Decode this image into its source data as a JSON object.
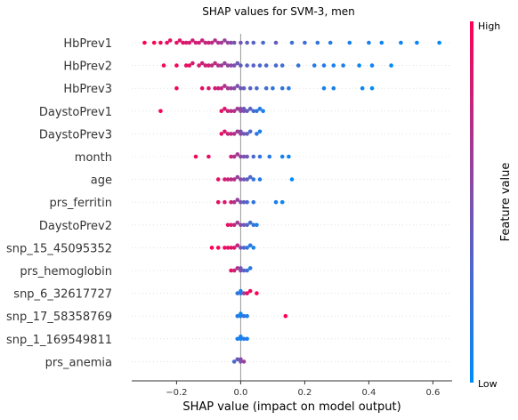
{
  "chart_data": {
    "type": "scatter",
    "subtype": "shap-beeswarm",
    "title": "SHAP values for SVM-3, men",
    "xlabel": "SHAP value (impact on model output)",
    "ylabel": "",
    "xlim": [
      -0.34,
      0.66
    ],
    "xticks": [
      {
        "value": -0.2,
        "label": "−0.2"
      },
      {
        "value": 0.0,
        "label": "0.0"
      },
      {
        "value": 0.2,
        "label": "0.2"
      },
      {
        "value": 0.4,
        "label": "0.4"
      },
      {
        "value": 0.6,
        "label": "0.6"
      }
    ],
    "grid": false,
    "colorbar": {
      "title": "Feature value",
      "high_label": "High",
      "low_label": "Low",
      "high_color": "#ff0052",
      "low_color": "#008bfb",
      "mid_color": "#7b52ae"
    },
    "features": [
      {
        "name": "HbPrev1",
        "points": [
          [
            -0.3,
            1
          ],
          [
            -0.27,
            1
          ],
          [
            -0.25,
            0.95
          ],
          [
            -0.23,
            0.9
          ],
          [
            -0.22,
            0.9
          ],
          [
            -0.2,
            0.9
          ],
          [
            -0.19,
            0.85
          ],
          [
            -0.18,
            0.9
          ],
          [
            -0.17,
            0.85
          ],
          [
            -0.16,
            0.85
          ],
          [
            -0.15,
            0.8
          ],
          [
            -0.14,
            0.85
          ],
          [
            -0.13,
            0.8
          ],
          [
            -0.12,
            0.8
          ],
          [
            -0.11,
            0.75
          ],
          [
            -0.1,
            0.8
          ],
          [
            -0.09,
            0.75
          ],
          [
            -0.08,
            0.7
          ],
          [
            -0.07,
            0.7
          ],
          [
            -0.06,
            0.65
          ],
          [
            -0.05,
            0.6
          ],
          [
            -0.04,
            0.6
          ],
          [
            -0.03,
            0.55
          ],
          [
            -0.02,
            0.5
          ],
          [
            0.0,
            0.45
          ],
          [
            0.02,
            0.4
          ],
          [
            0.04,
            0.35
          ],
          [
            0.07,
            0.3
          ],
          [
            0.11,
            0.4
          ],
          [
            0.16,
            0.25
          ],
          [
            0.2,
            0.25
          ],
          [
            0.24,
            0.2
          ],
          [
            0.28,
            0.15
          ],
          [
            0.34,
            0.1
          ],
          [
            0.4,
            0.1
          ],
          [
            0.44,
            0.05
          ],
          [
            0.5,
            0.05
          ],
          [
            0.55,
            0.05
          ],
          [
            0.62,
            0
          ]
        ]
      },
      {
        "name": "HbPrev2",
        "points": [
          [
            -0.24,
            0.95
          ],
          [
            -0.2,
            0.95
          ],
          [
            -0.17,
            0.9
          ],
          [
            -0.16,
            0.9
          ],
          [
            -0.15,
            0.85
          ],
          [
            -0.13,
            0.85
          ],
          [
            -0.12,
            0.8
          ],
          [
            -0.11,
            0.8
          ],
          [
            -0.1,
            0.85
          ],
          [
            -0.09,
            0.75
          ],
          [
            -0.08,
            0.75
          ],
          [
            -0.07,
            0.7
          ],
          [
            -0.06,
            0.65
          ],
          [
            -0.05,
            0.6
          ],
          [
            -0.04,
            0.6
          ],
          [
            -0.03,
            0.55
          ],
          [
            -0.02,
            0.5
          ],
          [
            -0.01,
            0.45
          ],
          [
            0.0,
            0.4
          ],
          [
            0.02,
            0.35
          ],
          [
            0.04,
            0.35
          ],
          [
            0.06,
            0.3
          ],
          [
            0.08,
            0.3
          ],
          [
            0.11,
            0.3
          ],
          [
            0.13,
            0.25
          ],
          [
            0.18,
            0.2
          ],
          [
            0.23,
            0.15
          ],
          [
            0.26,
            0.15
          ],
          [
            0.29,
            0.1
          ],
          [
            0.32,
            0.1
          ],
          [
            0.37,
            0.05
          ],
          [
            0.41,
            0.05
          ],
          [
            0.47,
            0
          ]
        ]
      },
      {
        "name": "HbPrev3",
        "points": [
          [
            -0.2,
            0.95
          ],
          [
            -0.12,
            0.9
          ],
          [
            -0.1,
            0.85
          ],
          [
            -0.08,
            0.85
          ],
          [
            -0.07,
            0.8
          ],
          [
            -0.06,
            0.75
          ],
          [
            -0.05,
            0.7
          ],
          [
            -0.04,
            0.65
          ],
          [
            -0.03,
            0.6
          ],
          [
            -0.02,
            0.55
          ],
          [
            -0.01,
            0.5
          ],
          [
            0.0,
            0.45
          ],
          [
            0.01,
            0.4
          ],
          [
            0.03,
            0.35
          ],
          [
            0.05,
            0.3
          ],
          [
            0.08,
            0.25
          ],
          [
            0.1,
            0.2
          ],
          [
            0.13,
            0.2
          ],
          [
            0.15,
            0.15
          ],
          [
            0.26,
            0.1
          ],
          [
            0.29,
            0.1
          ],
          [
            0.38,
            0.05
          ],
          [
            0.41,
            0
          ]
        ]
      },
      {
        "name": "DaystoPrev1",
        "points": [
          [
            -0.25,
            1
          ],
          [
            -0.06,
            0.9
          ],
          [
            -0.05,
            0.85
          ],
          [
            -0.04,
            0.8
          ],
          [
            -0.03,
            0.75
          ],
          [
            -0.02,
            0.7
          ],
          [
            -0.01,
            0.65
          ],
          [
            0.0,
            0.6
          ],
          [
            0.0,
            0.55
          ],
          [
            0.01,
            0.5
          ],
          [
            0.01,
            0.45
          ],
          [
            0.02,
            0.4
          ],
          [
            0.03,
            0.35
          ],
          [
            0.04,
            0.3
          ],
          [
            0.05,
            0.2
          ],
          [
            0.06,
            0.15
          ],
          [
            0.07,
            0.1
          ]
        ]
      },
      {
        "name": "DaystoPrev3",
        "points": [
          [
            -0.06,
            0.9
          ],
          [
            -0.05,
            0.85
          ],
          [
            -0.04,
            0.8
          ],
          [
            -0.03,
            0.75
          ],
          [
            -0.02,
            0.7
          ],
          [
            -0.01,
            0.65
          ],
          [
            0.0,
            0.6
          ],
          [
            0.0,
            0.5
          ],
          [
            0.01,
            0.45
          ],
          [
            0.02,
            0.4
          ],
          [
            0.03,
            0.3
          ],
          [
            0.05,
            0.2
          ],
          [
            0.06,
            0.1
          ]
        ]
      },
      {
        "name": "month",
        "points": [
          [
            -0.14,
            0.95
          ],
          [
            -0.1,
            0.9
          ],
          [
            -0.03,
            0.8
          ],
          [
            -0.02,
            0.7
          ],
          [
            -0.01,
            0.65
          ],
          [
            0.0,
            0.55
          ],
          [
            0.01,
            0.5
          ],
          [
            0.02,
            0.45
          ],
          [
            0.04,
            0.3
          ],
          [
            0.06,
            0.2
          ],
          [
            0.09,
            0.15
          ],
          [
            0.13,
            0.1
          ],
          [
            0.15,
            0.05
          ]
        ]
      },
      {
        "name": "age",
        "points": [
          [
            -0.07,
            0.9
          ],
          [
            -0.05,
            0.85
          ],
          [
            -0.04,
            0.8
          ],
          [
            -0.03,
            0.75
          ],
          [
            -0.02,
            0.7
          ],
          [
            -0.01,
            0.6
          ],
          [
            0.0,
            0.55
          ],
          [
            0.01,
            0.45
          ],
          [
            0.02,
            0.4
          ],
          [
            0.03,
            0.3
          ],
          [
            0.04,
            0.2
          ],
          [
            0.06,
            0.15
          ],
          [
            0.16,
            0
          ]
        ]
      },
      {
        "name": "prs_ferritin",
        "points": [
          [
            -0.07,
            0.9
          ],
          [
            -0.05,
            0.85
          ],
          [
            -0.03,
            0.8
          ],
          [
            -0.02,
            0.7
          ],
          [
            -0.01,
            0.6
          ],
          [
            0.0,
            0.5
          ],
          [
            0.01,
            0.4
          ],
          [
            0.02,
            0.3
          ],
          [
            0.04,
            0.2
          ],
          [
            0.11,
            0.1
          ],
          [
            0.13,
            0.05
          ]
        ]
      },
      {
        "name": "DaystoPrev2",
        "points": [
          [
            -0.04,
            0.9
          ],
          [
            -0.03,
            0.85
          ],
          [
            -0.02,
            0.75
          ],
          [
            -0.01,
            0.65
          ],
          [
            0.0,
            0.55
          ],
          [
            0.01,
            0.45
          ],
          [
            0.02,
            0.35
          ],
          [
            0.03,
            0.25
          ],
          [
            0.04,
            0.2
          ],
          [
            0.05,
            0.1
          ]
        ]
      },
      {
        "name": "snp_15_45095352",
        "points": [
          [
            -0.09,
            1
          ],
          [
            -0.07,
            1
          ],
          [
            -0.05,
            0.95
          ],
          [
            -0.04,
            0.9
          ],
          [
            -0.03,
            0.9
          ],
          [
            -0.02,
            0.85
          ],
          [
            -0.01,
            0.75
          ],
          [
            0.0,
            0.5
          ],
          [
            0.01,
            0.3
          ],
          [
            0.02,
            0.2
          ],
          [
            0.03,
            0.15
          ],
          [
            0.04,
            0.1
          ]
        ]
      },
      {
        "name": "prs_hemoglobin",
        "points": [
          [
            -0.03,
            0.9
          ],
          [
            -0.02,
            0.8
          ],
          [
            -0.01,
            0.7
          ],
          [
            0.0,
            0.55
          ],
          [
            0.0,
            0.45
          ],
          [
            0.01,
            0.35
          ],
          [
            0.02,
            0.25
          ],
          [
            0.03,
            0.15
          ]
        ]
      },
      {
        "name": "snp_6_32617727",
        "points": [
          [
            -0.01,
            0.2
          ],
          [
            0.0,
            0.15
          ],
          [
            0.0,
            0.1
          ],
          [
            0.01,
            0.6
          ],
          [
            0.02,
            0.9
          ],
          [
            0.03,
            0.95
          ],
          [
            0.05,
            1
          ]
        ]
      },
      {
        "name": "snp_17_58358769",
        "points": [
          [
            -0.01,
            0.15
          ],
          [
            0.0,
            0.1
          ],
          [
            0.0,
            0.05
          ],
          [
            0.01,
            0.2
          ],
          [
            0.02,
            0.1
          ],
          [
            0.14,
            1
          ]
        ]
      },
      {
        "name": "snp_1_169549811",
        "points": [
          [
            -0.01,
            0.1
          ],
          [
            0.0,
            0.05
          ],
          [
            0.0,
            0.1
          ],
          [
            0.01,
            0.15
          ],
          [
            0.02,
            0.1
          ]
        ]
      },
      {
        "name": "prs_anemia",
        "points": [
          [
            -0.02,
            0.3
          ],
          [
            -0.01,
            0.4
          ],
          [
            0.0,
            0.5
          ],
          [
            0.0,
            0.55
          ],
          [
            0.01,
            0.6
          ]
        ]
      }
    ]
  }
}
